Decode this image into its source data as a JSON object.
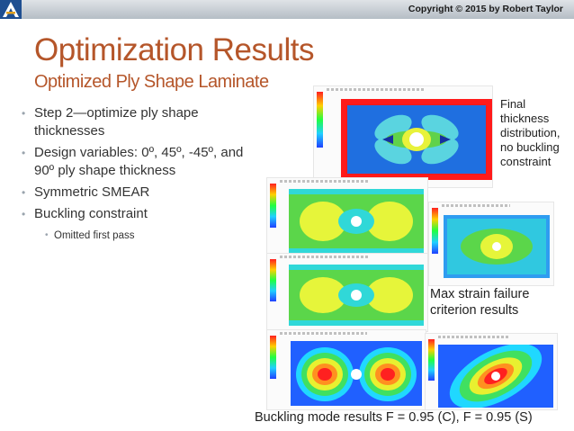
{
  "header": {
    "copyright": "Copyright © 2015 by Robert Taylor",
    "logo_letter": "A"
  },
  "title": "Optimization Results",
  "subtitle": "Optimized Ply Shape Laminate",
  "bullets": [
    "Step 2—optimize ply shape thicknesses",
    "Design variables: 0º, 45º, -45º, and 90º ply shape thickness",
    "Symmetric SMEAR",
    "Buckling constraint"
  ],
  "sub_bullets": [
    "Omitted first pass"
  ],
  "captions": {
    "thickness": "Final thickness distribution, no buckling constraint",
    "strain": "Max strain failure criterion results",
    "buckling": "Buckling mode results F = 0.95 (C), F = 0.95 (S)"
  },
  "colors": {
    "title": "#b5562a",
    "plate_red": "#ff1a1a",
    "plate_blue": "#1f6fe0",
    "field_green": "#5bd64a",
    "field_yellow": "#e6f53a",
    "field_cyan": "#30d8d8"
  }
}
